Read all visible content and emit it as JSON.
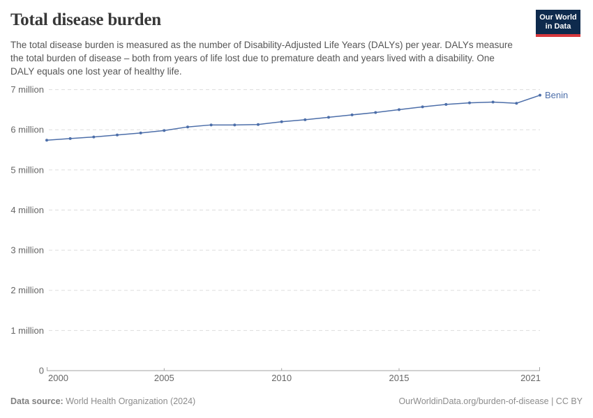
{
  "header": {
    "title": "Total disease burden",
    "subtitle_lines": [
      "The total disease burden is measured as the number of Disability-Adjusted Life Years (DALYs) per year.",
      "DALYs measure the total burden of disease – both from years of life lost due to premature death and years",
      "lived with a disability. One DALY equals one lost year of healthy life."
    ],
    "logo": {
      "line1": "Our World",
      "line2": "in Data",
      "bg_color": "#0e2a4d",
      "stripe_color": "#d7383d"
    }
  },
  "chart_data": {
    "type": "line",
    "title": "Total disease burden",
    "unit": "DALYs per year",
    "x": [
      2000,
      2001,
      2002,
      2003,
      2004,
      2005,
      2006,
      2007,
      2008,
      2009,
      2010,
      2011,
      2012,
      2013,
      2014,
      2015,
      2016,
      2017,
      2018,
      2019,
      2020,
      2021
    ],
    "series": [
      {
        "name": "Benin",
        "color": "#4c6ea9",
        "values_millions": [
          5.74,
          5.78,
          5.82,
          5.87,
          5.92,
          5.98,
          6.07,
          6.12,
          6.12,
          6.13,
          6.2,
          6.25,
          6.31,
          6.37,
          6.43,
          6.5,
          6.57,
          6.63,
          6.67,
          6.69,
          6.66,
          6.86
        ]
      }
    ],
    "xlabel": "",
    "ylabel": "",
    "xlim": [
      2000,
      2021
    ],
    "ylim_millions": [
      0,
      7
    ],
    "yticks": [
      {
        "v": 0,
        "label": "0"
      },
      {
        "v": 1,
        "label": "1 million"
      },
      {
        "v": 2,
        "label": "2 million"
      },
      {
        "v": 3,
        "label": "3 million"
      },
      {
        "v": 4,
        "label": "4 million"
      },
      {
        "v": 5,
        "label": "5 million"
      },
      {
        "v": 6,
        "label": "6 million"
      },
      {
        "v": 7,
        "label": "7 million"
      }
    ],
    "xticks": [
      {
        "v": 2000,
        "label": "2000",
        "align": "start"
      },
      {
        "v": 2005,
        "label": "2005",
        "align": "middle"
      },
      {
        "v": 2010,
        "label": "2010",
        "align": "middle"
      },
      {
        "v": 2015,
        "label": "2015",
        "align": "middle"
      },
      {
        "v": 2021,
        "label": "2021",
        "align": "end"
      }
    ],
    "grid": "horizontal-dashed",
    "legend": "line-end-label",
    "colors": {
      "grid": "#dddddd",
      "axis": "#a3a3a3",
      "tick_text": "#666666"
    }
  },
  "footer": {
    "source_label": "Data source:",
    "source_value": " World Health Organization (2024)",
    "credit": "OurWorldinData.org/burden-of-disease | CC BY"
  }
}
